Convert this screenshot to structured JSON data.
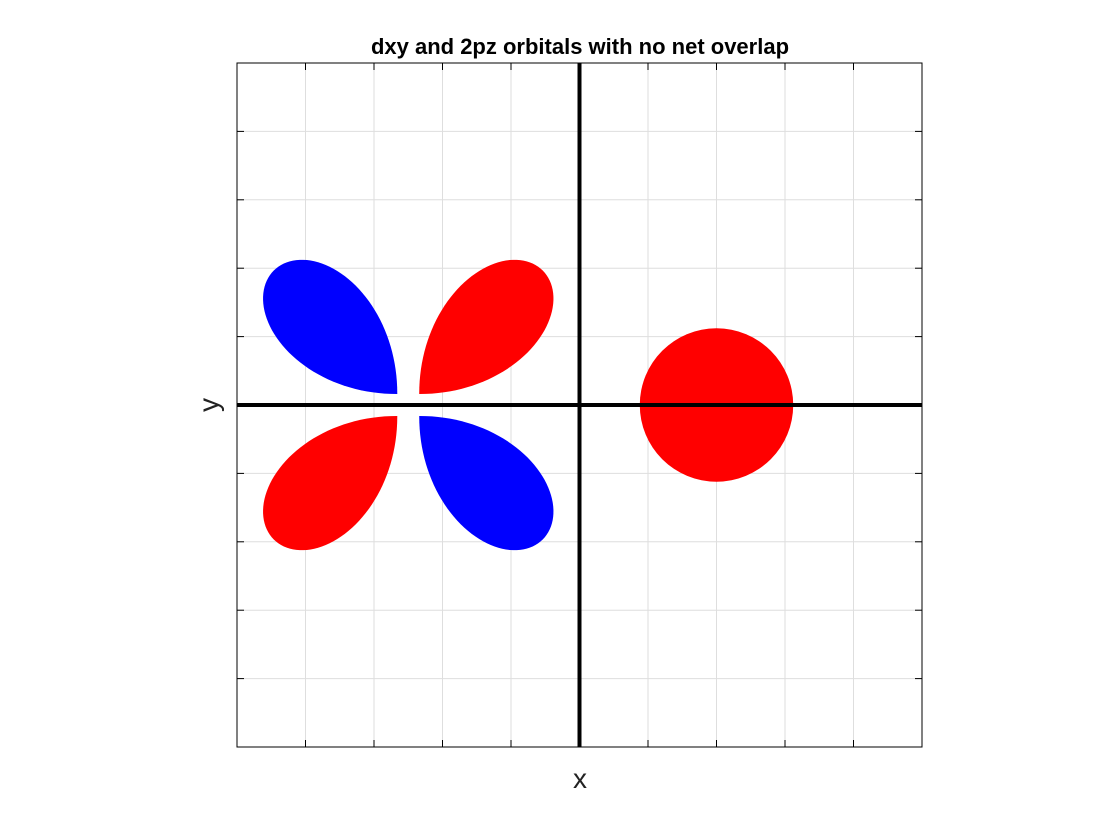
{
  "title": "dxy and 2pz orbitals with no net overlap",
  "xlabel": "x",
  "ylabel": "y",
  "colors": {
    "positive_lobe": "#ff0000",
    "negative_lobe": "#0000ff",
    "axis_line": "#000000",
    "grid": "#dedede",
    "frame": "#000000"
  },
  "chart_data": {
    "type": "diagram",
    "title": "dxy and 2pz orbitals with no net overlap",
    "xlabel": "x",
    "ylabel": "y",
    "xlim": [
      -5,
      5
    ],
    "ylim": [
      -5,
      5
    ],
    "grid": true,
    "ticks": [
      -5,
      -4,
      -3,
      -2,
      -1,
      0,
      1,
      2,
      3,
      4,
      5
    ],
    "dxy_orbital": {
      "center": [
        -2.5,
        0
      ],
      "lobes": [
        {
          "quadrant": "upper-left",
          "phase": "negative",
          "color": "#0000ff"
        },
        {
          "quadrant": "upper-right",
          "phase": "positive",
          "color": "#ff0000"
        },
        {
          "quadrant": "lower-left",
          "phase": "positive",
          "color": "#ff0000"
        },
        {
          "quadrant": "lower-right",
          "phase": "negative",
          "color": "#0000ff"
        }
      ]
    },
    "pz_orbital": {
      "center": [
        2,
        0
      ],
      "radius": 1.12,
      "phase": "positive",
      "color": "#ff0000"
    }
  }
}
